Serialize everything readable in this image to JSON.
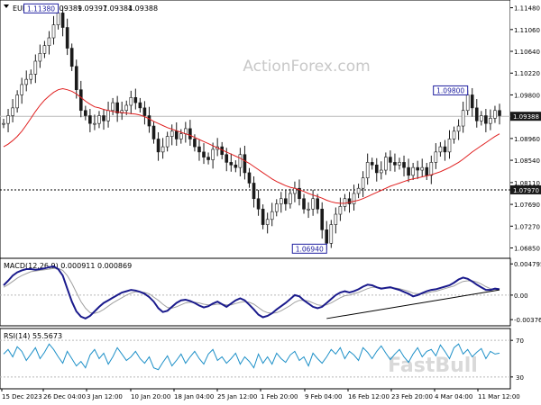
{
  "chart_data": [
    {
      "panel": "price",
      "type": "candlestick",
      "title": "EURUSD,H4",
      "ohlc": [
        "1.09389",
        "1.09397",
        "1.09384",
        "1.09388"
      ],
      "watermark": "ActionForex.com",
      "ylim": [
        1.0672,
        1.1156
      ],
      "y_ticks": [
        "1.11480",
        "1.11060",
        "1.10640",
        "1.10220",
        "1.09800",
        "1.09388",
        "1.08960",
        "1.08540",
        "1.08110",
        "1.07970",
        "1.07690",
        "1.07270",
        "1.06850"
      ],
      "current_price": 1.09388,
      "current_price_label": "1.09388",
      "horizontal_line": {
        "value": 1.0797,
        "label": "1.07970",
        "style": "dotted"
      },
      "annotations": [
        {
          "text": "1.11380",
          "x_index": 12,
          "value": 1.1138
        },
        {
          "text": "1.06940",
          "x_index": 71,
          "value": 1.0694
        },
        {
          "text": "1.09800",
          "x_index": 102,
          "value": 1.098
        }
      ],
      "price_series": [
        1.0925,
        1.094,
        1.0955,
        1.098,
        1.1,
        1.101,
        1.102,
        1.1045,
        1.106,
        1.1075,
        1.109,
        1.1115,
        1.1138,
        1.111,
        1.107,
        1.1035,
        1.099,
        1.095,
        1.094,
        1.0925,
        1.0925,
        1.094,
        1.093,
        1.095,
        1.0965,
        1.0945,
        1.095,
        1.096,
        1.0975,
        1.0965,
        1.0955,
        1.094,
        1.092,
        1.0895,
        1.087,
        1.088,
        1.09,
        1.091,
        1.0895,
        1.0905,
        1.0915,
        1.0895,
        1.088,
        1.087,
        1.086,
        1.0855,
        1.0875,
        1.088,
        1.0865,
        1.085,
        1.0845,
        1.084,
        1.0865,
        1.083,
        1.081,
        1.078,
        1.076,
        1.073,
        1.074,
        1.0755,
        1.077,
        1.078,
        1.077,
        1.079,
        1.08,
        1.078,
        1.076,
        1.076,
        1.078,
        1.076,
        1.072,
        1.0694,
        1.073,
        1.075,
        1.0765,
        1.078,
        1.077,
        1.079,
        1.08,
        1.082,
        1.085,
        1.0845,
        1.083,
        1.0835,
        1.086,
        1.085,
        1.0845,
        1.085,
        1.084,
        1.0825,
        1.084,
        1.0835,
        1.084,
        1.0825,
        1.085,
        1.087,
        1.088,
        1.087,
        1.0895,
        1.091,
        1.092,
        1.095,
        1.098,
        1.0955,
        1.093,
        1.094,
        1.0925,
        1.0935,
        1.095,
        1.094
      ],
      "moving_average": [
        1.088,
        1.0885,
        1.0892,
        1.09,
        1.091,
        1.0922,
        1.0935,
        1.0948,
        1.096,
        1.097,
        1.0978,
        1.0985,
        1.099,
        1.0992,
        1.099,
        1.0987,
        1.0982,
        1.0975,
        1.0968,
        1.0962,
        1.0957,
        1.0955,
        1.0952,
        1.095,
        1.0948,
        1.0947,
        1.0946,
        1.0945,
        1.0944,
        1.0943,
        1.0941,
        1.0938,
        1.0934,
        1.0929,
        1.0925,
        1.0921,
        1.0917,
        1.0914,
        1.0911,
        1.0908,
        1.0905,
        1.0902,
        1.0898,
        1.0894,
        1.089,
        1.0886,
        1.0882,
        1.0878,
        1.0874,
        1.087,
        1.0866,
        1.0862,
        1.0858,
        1.0853,
        1.0848,
        1.0842,
        1.0836,
        1.083,
        1.0824,
        1.0818,
        1.0813,
        1.0809,
        1.0805,
        1.0802,
        1.08,
        1.0797,
        1.0794,
        1.079,
        1.0787,
        1.0784,
        1.0781,
        1.0777,
        1.0774,
        1.0772,
        1.0771,
        1.0771,
        1.0773,
        1.0775,
        1.0777,
        1.078,
        1.0784,
        1.0788,
        1.0792,
        1.0796,
        1.08,
        1.0804,
        1.0807,
        1.081,
        1.0813,
        1.0816,
        1.0818,
        1.082,
        1.0822,
        1.0824,
        1.0826,
        1.0829,
        1.0832,
        1.0836,
        1.084,
        1.0845,
        1.085,
        1.0856,
        1.0863,
        1.087,
        1.0876,
        1.0882,
        1.0888,
        1.0894,
        1.09,
        1.0905
      ]
    },
    {
      "panel": "macd",
      "type": "line",
      "title": "MACD(12,26,9) 0.000911 0.000869",
      "ylim": [
        -0.0043,
        0.0051
      ],
      "y_ticks": [
        "0.004795",
        "0.00",
        "-0.003767"
      ],
      "macd_series": [
        0.0015,
        0.0022,
        0.003,
        0.0035,
        0.0038,
        0.004,
        0.004,
        0.0039,
        0.004,
        0.0041,
        0.0043,
        0.0044,
        0.004,
        0.003,
        0.001,
        -0.001,
        -0.0025,
        -0.0033,
        -0.0036,
        -0.0032,
        -0.0025,
        -0.0018,
        -0.0012,
        -0.0008,
        -0.0004,
        0.0,
        0.0004,
        0.0006,
        0.0008,
        0.0007,
        0.0005,
        0.0002,
        -0.0003,
        -0.001,
        -0.002,
        -0.0026,
        -0.0024,
        -0.0018,
        -0.0012,
        -0.0008,
        -0.0007,
        -0.0009,
        -0.0012,
        -0.0016,
        -0.0019,
        -0.0017,
        -0.0013,
        -0.001,
        -0.0014,
        -0.0018,
        -0.0013,
        -0.0008,
        -0.0005,
        -0.0008,
        -0.0015,
        -0.0022,
        -0.003,
        -0.0034,
        -0.0032,
        -0.0028,
        -0.0022,
        -0.0017,
        -0.0012,
        -0.0006,
        0.0,
        -0.0002,
        -0.0008,
        -0.0013,
        -0.0018,
        -0.002,
        -0.0018,
        -0.0012,
        -0.0006,
        0.0,
        0.0004,
        0.0006,
        0.0004,
        0.0006,
        0.0009,
        0.0013,
        0.0016,
        0.0015,
        0.0012,
        0.001,
        0.0011,
        0.0012,
        0.001,
        0.0008,
        0.0005,
        0.0002,
        -0.0002,
        0.0,
        0.0003,
        0.0006,
        0.0008,
        0.0009,
        0.0011,
        0.0013,
        0.0015,
        0.0019,
        0.0024,
        0.0027,
        0.0025,
        0.0021,
        0.0016,
        0.0012,
        0.0008,
        0.0008,
        0.001,
        0.0009
      ],
      "signal_series": [
        0.0012,
        0.0016,
        0.0021,
        0.0026,
        0.003,
        0.0033,
        0.0036,
        0.0037,
        0.0038,
        0.0039,
        0.004,
        0.0041,
        0.0041,
        0.0038,
        0.003,
        0.0018,
        0.0004,
        -0.001,
        -0.002,
        -0.0027,
        -0.0028,
        -0.0026,
        -0.0022,
        -0.0017,
        -0.0012,
        -0.0008,
        -0.0004,
        0.0,
        0.0003,
        0.0005,
        0.0005,
        0.0004,
        0.0002,
        -0.0003,
        -0.0008,
        -0.0014,
        -0.0019,
        -0.002,
        -0.0018,
        -0.0015,
        -0.0012,
        -0.0011,
        -0.0011,
        -0.0012,
        -0.0014,
        -0.0015,
        -0.0015,
        -0.0014,
        -0.0014,
        -0.0015,
        -0.0015,
        -0.0013,
        -0.0011,
        -0.001,
        -0.0011,
        -0.0014,
        -0.0019,
        -0.0024,
        -0.0027,
        -0.0028,
        -0.0027,
        -0.0024,
        -0.002,
        -0.0016,
        -0.0011,
        -0.0008,
        -0.0008,
        -0.0009,
        -0.0012,
        -0.0015,
        -0.0016,
        -0.0015,
        -0.0012,
        -0.0008,
        -0.0004,
        -0.0001,
        0.0,
        0.0002,
        0.0004,
        0.0007,
        0.001,
        0.0012,
        0.0012,
        0.0011,
        0.0011,
        0.0011,
        0.0011,
        0.001,
        0.0008,
        0.0006,
        0.0003,
        0.0002,
        0.0002,
        0.0003,
        0.0005,
        0.0006,
        0.0008,
        0.001,
        0.0012,
        0.0014,
        0.0018,
        0.0021,
        0.0022,
        0.0022,
        0.002,
        0.0017,
        0.0013,
        0.001,
        0.0009,
        0.0009
      ],
      "trendline": {
        "from_index": 71,
        "from_value": -0.0036,
        "to_index": 109,
        "to_value": 0.0008
      },
      "zero_line": 0
    },
    {
      "panel": "rsi",
      "type": "line",
      "title": "RSI(14) 55.5673",
      "watermark": "FastBull",
      "ylim": [
        20,
        80
      ],
      "y_ticks": [
        "70",
        "30"
      ],
      "levels": [
        70,
        30
      ],
      "rsi_series": [
        55,
        60,
        52,
        63,
        58,
        48,
        55,
        62,
        50,
        57,
        66,
        60,
        52,
        45,
        58,
        50,
        42,
        47,
        40,
        54,
        60,
        50,
        56,
        44,
        52,
        62,
        55,
        48,
        52,
        58,
        50,
        45,
        52,
        40,
        38,
        46,
        53,
        42,
        48,
        55,
        45,
        52,
        58,
        50,
        44,
        55,
        60,
        48,
        52,
        45,
        50,
        56,
        44,
        52,
        47,
        40,
        55,
        45,
        52,
        44,
        56,
        50,
        46,
        54,
        58,
        48,
        52,
        42,
        56,
        50,
        45,
        52,
        60,
        55,
        62,
        50,
        58,
        54,
        48,
        62,
        57,
        50,
        58,
        64,
        56,
        49,
        55,
        60,
        52,
        46,
        55,
        62,
        52,
        58,
        60,
        53,
        65,
        58,
        50,
        62,
        66,
        55,
        60,
        52,
        57,
        61,
        50,
        58,
        55,
        56
      ],
      "x_tick_labels": [
        "15 Dec 2023",
        "26 Dec 04:00",
        "3 Jan 12:00",
        "10 Jan 20:00",
        "18 Jan 04:00",
        "25 Jan 12:00",
        "1 Feb 20:00",
        "9 Feb 04:00",
        "16 Feb 12:00",
        "23 Feb 20:00",
        "4 Mar 04:00",
        "11 Mar 12:00"
      ]
    }
  ]
}
